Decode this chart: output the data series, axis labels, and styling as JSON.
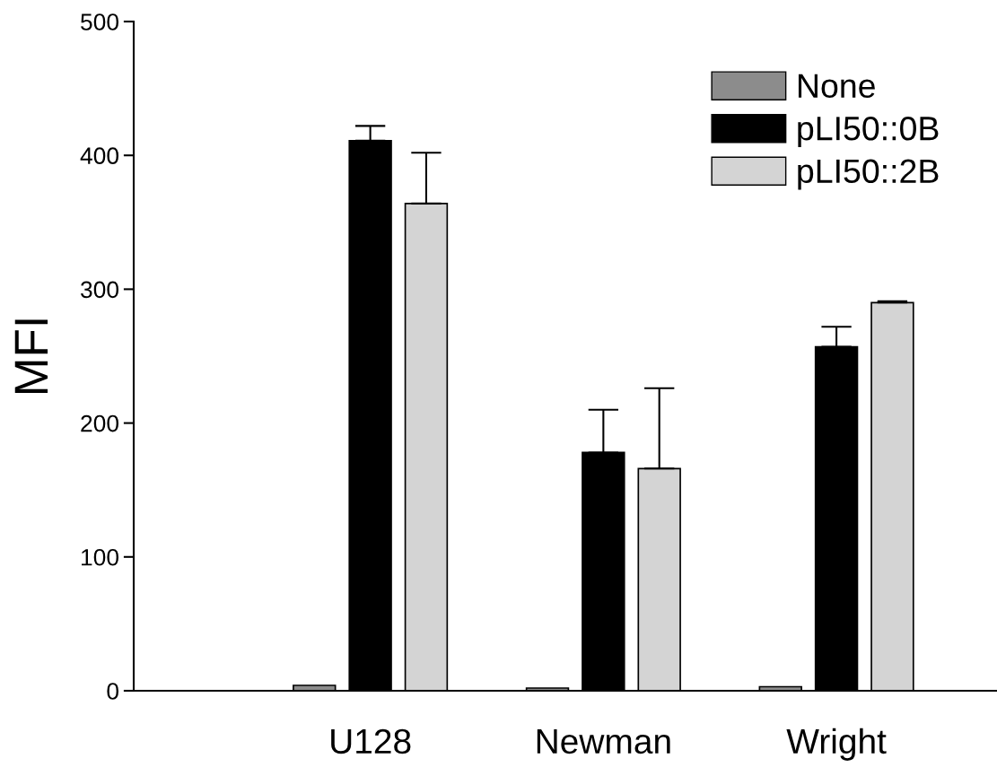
{
  "chart_data": {
    "type": "bar",
    "ylabel": "MFI",
    "categories": [
      "U128",
      "Newman",
      "Wright"
    ],
    "series": [
      {
        "name": "None",
        "color": "#8c8c8c",
        "values": [
          4,
          2,
          3
        ]
      },
      {
        "name": "pLI50::0B",
        "color": "#000000",
        "values": [
          411,
          178,
          257
        ],
        "errors": [
          [
            411,
            422
          ],
          [
            178,
            210
          ],
          [
            257,
            272
          ]
        ]
      },
      {
        "name": "pLI50::2B",
        "color": "#d4d4d4",
        "values": [
          364,
          166,
          290
        ],
        "errors": [
          [
            364,
            402
          ],
          [
            166,
            226
          ],
          [
            290,
            291
          ]
        ]
      }
    ],
    "ylim": [
      0,
      500
    ],
    "yticks": [
      0,
      100,
      200,
      300,
      400,
      500
    ],
    "grid": false,
    "legend": "top right"
  }
}
